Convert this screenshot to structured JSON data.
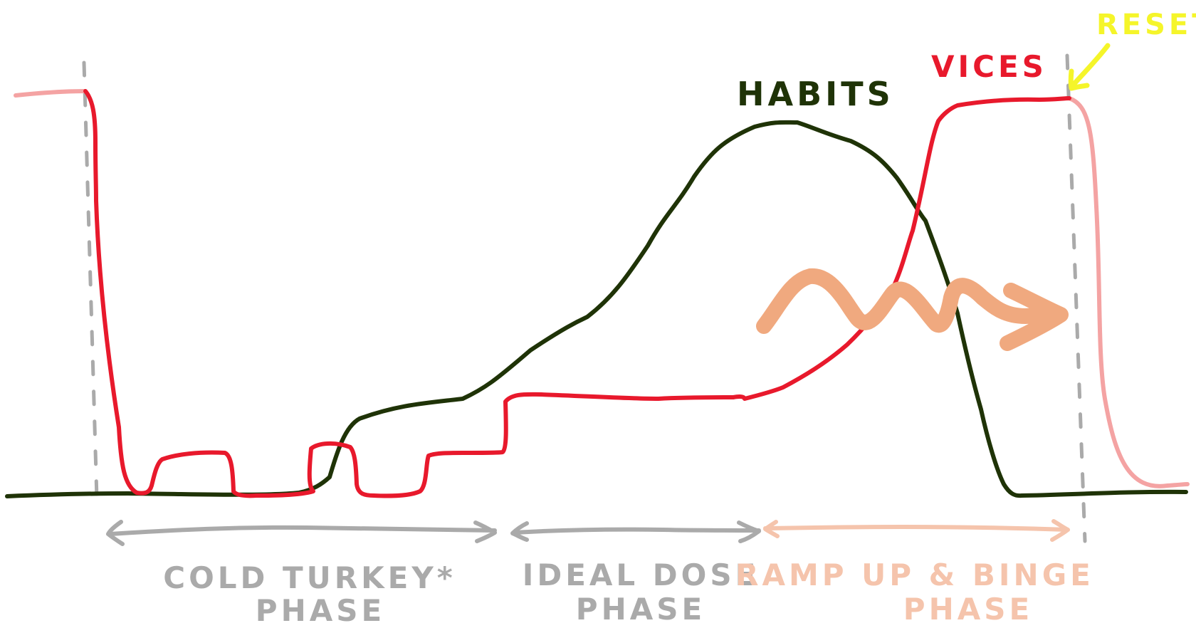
{
  "labels": {
    "habits": "HABITS",
    "vices": "VICES",
    "reset": "RESET"
  },
  "phases": [
    {
      "line1": "COLD TURKEY*",
      "line2": "PHASE"
    },
    {
      "line1": "IDEAL DOSE",
      "line2": "PHASE"
    },
    {
      "line1": "RAMP UP & BINGE",
      "line2": "PHASE"
    }
  ],
  "colors": {
    "habits": "#1f3307",
    "vices": "#e8192c",
    "vices_faded": "#f4a3a3",
    "divider": "#aaaaaa",
    "phase_gray": "#aaaaaa",
    "phase_peach": "#f5c4ac",
    "squiggle": "#f0a97f",
    "reset": "#f5f52a"
  },
  "icons": {
    "reset_pointer": "arrow-down-left-icon",
    "binge_trend": "squiggle-arrow-icon",
    "span_marker": "double-arrow-icon"
  }
}
